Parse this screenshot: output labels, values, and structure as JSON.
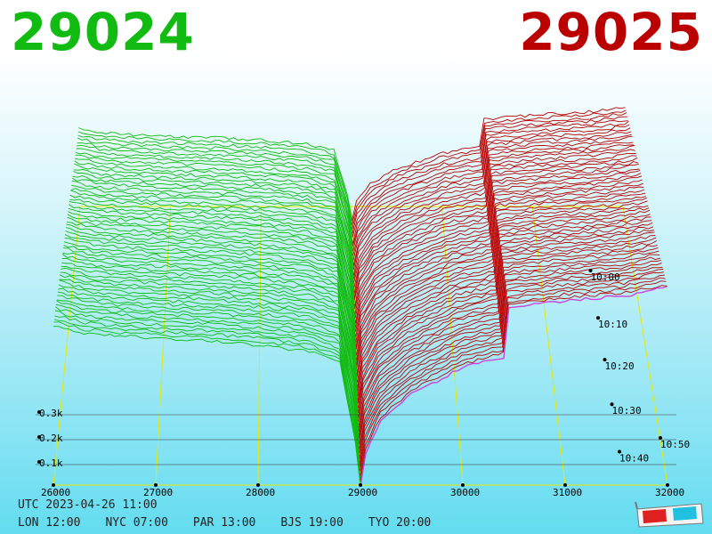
{
  "header": {
    "bid_price": "29024",
    "ask_price": "29025",
    "bid_color": "#12bb12",
    "ask_color": "#bb0000"
  },
  "footer": {
    "utc": "UTC 2023-04-26 11:00",
    "cities": [
      {
        "label": "LON 12:00"
      },
      {
        "label": "NYC 07:00"
      },
      {
        "label": "PAR 13:00"
      },
      {
        "label": "BJS 19:00"
      },
      {
        "label": "TYO 20:00"
      }
    ],
    "icon": "3d-glasses-icon"
  },
  "chart_data": {
    "type": "area",
    "x_ticks": [
      "26000",
      "27000",
      "28000",
      "29000",
      "30000",
      "31000",
      "32000"
    ],
    "y_ticks": [
      "0.1k",
      "0.2k",
      "0.3k"
    ],
    "time_ticks": [
      "10:00",
      "10:10",
      "10:20",
      "10:30",
      "10:40",
      "10:50"
    ],
    "xlim": [
      26000,
      32000
    ],
    "ylim": [
      0,
      300
    ],
    "bid_color": "#11bb11",
    "ask_color": "#bb0000",
    "latest_ask_color": "#cc44dd",
    "grid": true,
    "grid_color": "#e8e800"
  }
}
